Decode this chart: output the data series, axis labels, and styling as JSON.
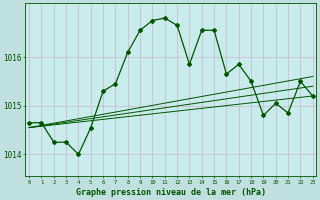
{
  "title": "Graphe pression niveau de la mer (hPa)",
  "bg_color": "#c0e0e0",
  "plot_bg_color": "#c8ecec",
  "grid_color": "#b0c8c8",
  "line_color": "#005500",
  "x_ticks": [
    0,
    1,
    2,
    3,
    4,
    5,
    6,
    7,
    8,
    9,
    10,
    11,
    12,
    13,
    14,
    15,
    16,
    17,
    18,
    19,
    20,
    21,
    22,
    23
  ],
  "y_ticks": [
    1014,
    1015,
    1016
  ],
  "ylim": [
    1013.55,
    1017.1
  ],
  "xlim": [
    -0.3,
    23.3
  ],
  "main_series_x": [
    0,
    1,
    2,
    3,
    4,
    5,
    6,
    7,
    8,
    9,
    10,
    11,
    12,
    13,
    14,
    15,
    16,
    17,
    18,
    19,
    20,
    21,
    22,
    23
  ],
  "main_series_y": [
    1014.65,
    1014.65,
    1014.25,
    1014.25,
    1014.0,
    1014.55,
    1015.3,
    1015.45,
    1016.1,
    1016.55,
    1016.75,
    1016.8,
    1016.65,
    1015.85,
    1016.55,
    1016.55,
    1015.65,
    1015.85,
    1015.5,
    1014.8,
    1015.05,
    1014.85,
    1015.5,
    1015.2
  ],
  "trend1_x": [
    0,
    23
  ],
  "trend1_y": [
    1014.55,
    1015.6
  ],
  "trend2_x": [
    0,
    23
  ],
  "trend2_y": [
    1014.55,
    1015.4
  ],
  "trend3_x": [
    0,
    23
  ],
  "trend3_y": [
    1014.55,
    1015.2
  ],
  "xtick_fontsize": 4.0,
  "ytick_fontsize": 5.5,
  "xlabel_fontsize": 6.0
}
